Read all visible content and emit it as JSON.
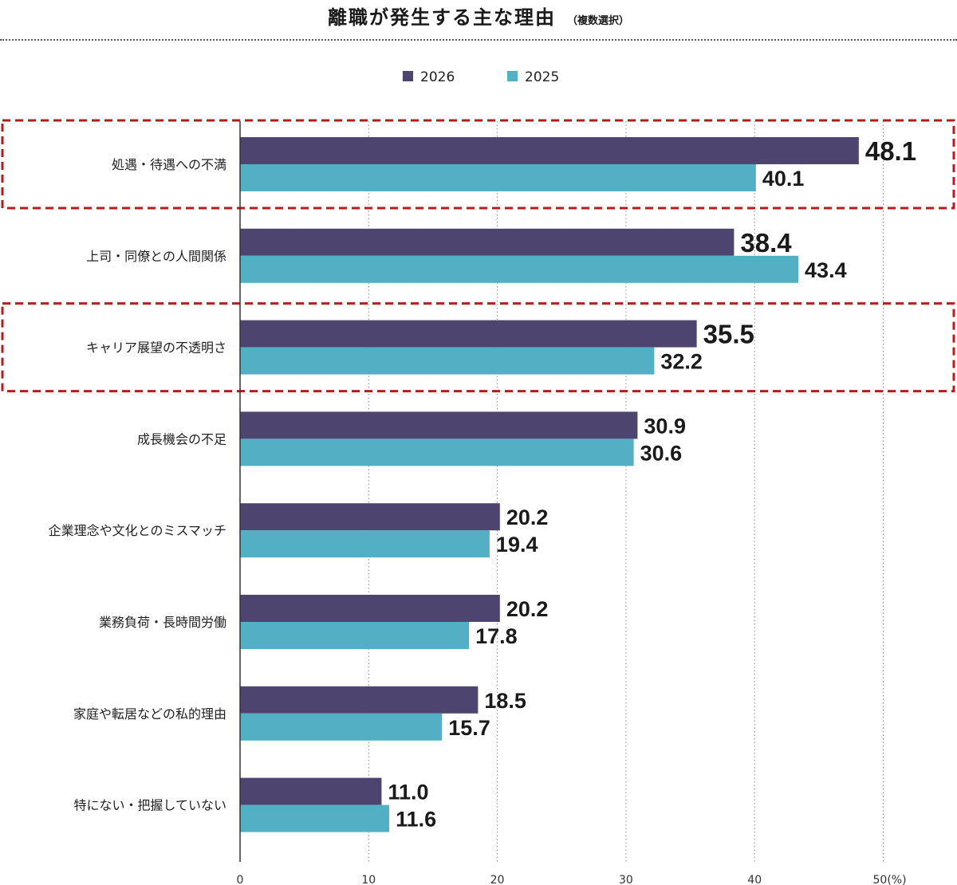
{
  "title": "離職が発生する主な理由",
  "subtitle": "（複数選択）",
  "colors": {
    "s2026": "#4d4570",
    "s2025": "#53b0c4",
    "highlight": "#b51d1d",
    "text": "#1a1a1a"
  },
  "chart_data": {
    "type": "bar",
    "orientation": "horizontal",
    "categories": [
      "処遇・待遇への不満",
      "上司・同僚との人間関係",
      "キャリア展望の不透明さ",
      "成長機会の不足",
      "企業理念や文化とのミスマッチ",
      "業務負荷・長時間労働",
      "家庭や転居などの私的理由",
      "特にない・把握していない"
    ],
    "series": [
      {
        "name": "2026",
        "values": [
          48.1,
          38.4,
          35.5,
          30.9,
          20.2,
          20.2,
          18.5,
          11.0
        ]
      },
      {
        "name": "2025",
        "values": [
          40.1,
          43.4,
          32.2,
          30.6,
          19.4,
          17.8,
          15.7,
          11.6
        ]
      }
    ],
    "value_labels": {
      "2026": [
        "48.1",
        "38.4",
        "35.5",
        "30.9",
        "20.2",
        "20.2",
        "18.5",
        "11.0"
      ],
      "2025": [
        "40.1",
        "43.4",
        "32.2",
        "30.6",
        "19.4",
        "17.8",
        "15.7",
        "11.6"
      ]
    },
    "xlim": [
      0,
      50
    ],
    "xticks": [
      0,
      10,
      20,
      30,
      40,
      50
    ],
    "xtick_labels": [
      "0",
      "10",
      "20",
      "30",
      "40",
      "50(%)"
    ],
    "highlighted_categories": [
      0,
      2
    ],
    "highlighted_labels": [
      [
        0,
        "2026"
      ],
      [
        1,
        "2026"
      ],
      [
        2,
        "2026"
      ]
    ],
    "grid": "dotted vertical",
    "legend": "top-center"
  }
}
